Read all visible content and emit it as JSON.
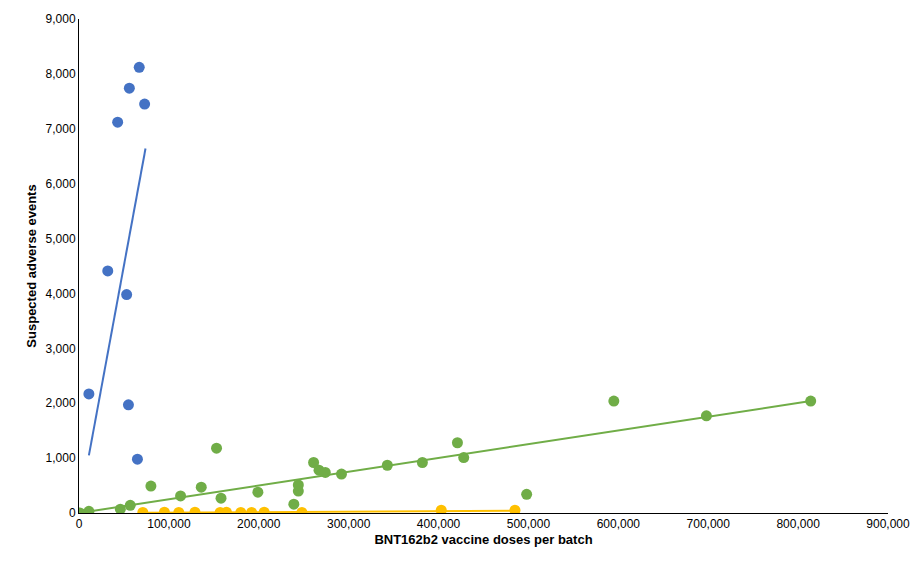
{
  "chart_data": {
    "type": "scatter",
    "x_label": "BNT162b2 vaccine doses per batch",
    "y_label": "Suspected adverse events",
    "xlim": [
      0,
      900000
    ],
    "xticks": [
      0,
      {
        "value": 100000,
        "label": "100,000"
      },
      {
        "value": 200000,
        "label": "200,000"
      },
      {
        "value": 300000,
        "label": "300,000"
      },
      {
        "value": 400000,
        "label": "400,000"
      },
      {
        "value": 500000,
        "label": "500,000"
      },
      {
        "value": 600000,
        "label": "600,000"
      },
      {
        "value": 700000,
        "label": "700,000"
      },
      {
        "value": 800000,
        "label": "800,000"
      },
      {
        "value": 900000,
        "label": "900,000"
      }
    ],
    "ylim": [
      0,
      9000
    ],
    "yticks": [
      0,
      {
        "value": 1000,
        "label": "1,000"
      },
      {
        "value": 2000,
        "label": "2,000"
      },
      {
        "value": 3000,
        "label": "3,000"
      },
      {
        "value": 4000,
        "label": "4,000"
      },
      {
        "value": 5000,
        "label": "5,000"
      },
      {
        "value": 6000,
        "label": "6,000"
      },
      {
        "value": 7000,
        "label": "7,000"
      },
      {
        "value": 8000,
        "label": "8,000"
      },
      {
        "value": 9000,
        "label": "9,000"
      }
    ],
    "grid": false,
    "series": [
      {
        "type": "scatter",
        "color": "#4472c4",
        "marker": "circle",
        "x": [
          11000,
          32000,
          43000,
          53000,
          55000,
          56000,
          65000,
          67000,
          73000
        ],
        "values": [
          2170,
          4410,
          7120,
          3980,
          1970,
          7740,
          980,
          8120,
          7450
        ]
      },
      {
        "type": "scatter",
        "color": "#70ad47",
        "marker": "circle",
        "x": [
          1000,
          11000,
          46000,
          57000,
          80000,
          113000,
          136000,
          153000,
          158000,
          199000,
          239000,
          244000,
          244000,
          261000,
          267000,
          274000,
          292000,
          343000,
          382000,
          421000,
          428000,
          498000,
          595000,
          698000,
          814000
        ],
        "values": [
          0,
          30,
          70,
          140,
          490,
          310,
          470,
          1180,
          270,
          380,
          160,
          400,
          510,
          920,
          780,
          740,
          710,
          870,
          920,
          1280,
          1010,
          340,
          2040,
          1770,
          2040
        ]
      },
      {
        "type": "scatter",
        "color": "#ffc000",
        "marker": "circle",
        "x": [
          71000,
          95000,
          111000,
          129000,
          157000,
          164000,
          180000,
          192000,
          206000,
          248000,
          403000,
          485000
        ],
        "values": [
          10,
          15,
          10,
          15,
          10,
          15,
          10,
          10,
          15,
          10,
          50,
          50
        ]
      },
      {
        "type": "line",
        "color": "#4472c4",
        "line_style": "solid",
        "x": [
          11000,
          74000
        ],
        "values": [
          1050,
          6640
        ]
      },
      {
        "type": "line",
        "color": "#70ad47",
        "line_style": "solid",
        "x": [
          0,
          814000
        ],
        "values": [
          0,
          2040
        ]
      },
      {
        "type": "line",
        "color": "#ffc000",
        "line_style": "solid",
        "x": [
          71000,
          485000
        ],
        "values": [
          5,
          40
        ]
      }
    ]
  }
}
